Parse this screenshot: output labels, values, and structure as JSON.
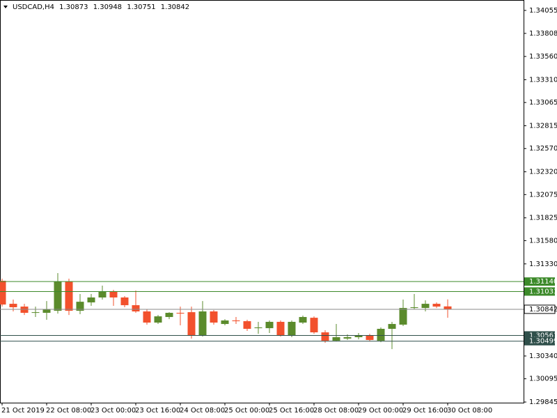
{
  "chart_data": {
    "type": "candlestick",
    "symbol": "USDCAD,H4",
    "categories": [
      "21 Oct 2019",
      null,
      null,
      null,
      "22 Oct 08:00",
      null,
      null,
      null,
      "23 Oct 00:00",
      null,
      null,
      null,
      "23 Oct 16:00",
      null,
      null,
      null,
      "24 Oct 08:00",
      null,
      null,
      null,
      "25 Oct 00:00",
      null,
      null,
      null,
      "25 Oct 16:00",
      null,
      null,
      null,
      "28 Oct 08:00",
      null,
      null,
      null,
      "29 Oct 00:00",
      null,
      null,
      null,
      "29 Oct 16:00",
      null,
      null,
      null,
      "30 Oct 08:00"
    ],
    "series": [
      {
        "name": "USDCAD,H4",
        "up_color": "#5b8b2c",
        "down_color": "#f2512d",
        "open": [
          1.31148,
          1.30901,
          1.30871,
          1.30804,
          1.30804,
          1.30826,
          1.31141,
          1.30826,
          1.30916,
          1.30969,
          1.31036,
          1.30969,
          1.30886,
          1.30819,
          1.30699,
          1.30759,
          1.30804,
          1.30811,
          1.30564,
          1.30819,
          1.30684,
          1.30722,
          1.30714,
          1.30639,
          1.30639,
          1.30707,
          1.30564,
          1.30699,
          1.30751,
          1.30594,
          1.30504,
          1.30527,
          1.30542,
          1.30557,
          1.30504,
          1.30632,
          1.30677,
          1.30856,
          1.30856,
          1.30901,
          1.30873
        ],
        "high": [
          1.31171,
          1.30946,
          1.30901,
          1.30871,
          1.30931,
          1.31231,
          1.31171,
          1.31006,
          1.31006,
          1.31096,
          1.31051,
          1.30984,
          1.31044,
          1.30841,
          1.30781,
          1.30811,
          1.30871,
          1.30871,
          1.30931,
          1.30834,
          1.30736,
          1.30759,
          1.30729,
          1.30707,
          1.30722,
          1.30722,
          1.30722,
          1.30774,
          1.30766,
          1.30617,
          1.30684,
          1.30572,
          1.30587,
          1.30579,
          1.30647,
          1.30707,
          1.30946,
          1.31006,
          1.30938,
          1.30916,
          1.30948
        ],
        "low": [
          1.30871,
          1.30819,
          1.30781,
          1.30759,
          1.30729,
          1.30796,
          1.30781,
          1.30789,
          1.30879,
          1.30946,
          1.30879,
          1.30864,
          1.30804,
          1.30677,
          1.30684,
          1.30736,
          1.30669,
          1.30527,
          1.30549,
          1.30677,
          1.30669,
          1.30684,
          1.30609,
          1.30579,
          1.30587,
          1.30549,
          1.30542,
          1.30684,
          1.30579,
          1.30482,
          1.30497,
          1.30512,
          1.30519,
          1.30497,
          1.30489,
          1.30414,
          1.30662,
          1.30841,
          1.30819,
          1.30856,
          1.30751
        ],
        "close": [
          1.30893,
          1.30864,
          1.30804,
          1.30811,
          1.30841,
          1.31141,
          1.30826,
          1.30923,
          1.30969,
          1.31036,
          1.30969,
          1.30886,
          1.30819,
          1.30699,
          1.30766,
          1.30804,
          1.30796,
          1.30564,
          1.30819,
          1.30699,
          1.30722,
          1.30714,
          1.30632,
          1.30647,
          1.30707,
          1.30564,
          1.30707,
          1.30759,
          1.30594,
          1.30504,
          1.30542,
          1.30542,
          1.30564,
          1.30512,
          1.30632,
          1.30684,
          1.30856,
          1.30864,
          1.30901,
          1.30871,
          1.30842
        ]
      }
    ],
    "levels": [
      {
        "value": 1.3114,
        "label": "1.31140",
        "color": "#3c8a2a"
      },
      {
        "value": 1.31033,
        "label": "1.31033",
        "color": "#3c8a2a"
      },
      {
        "value": 1.30561,
        "label": "1.30561",
        "color": "#2f4f4a"
      },
      {
        "value": 1.30499,
        "label": "1.30499",
        "color": "#2f4f4a"
      }
    ],
    "ylim": [
      1.29838,
      1.34167
    ],
    "yticks": [
      1.34055,
      1.33808,
      {
        "value": 1.3356,
        "label": "1.33560"
      },
      {
        "value": 1.3331,
        "label": "1.33310"
      },
      1.33065,
      1.32815,
      {
        "value": 1.3257,
        "label": "1.32570"
      },
      {
        "value": 1.3232,
        "label": "1.32320"
      },
      1.32075,
      1.31825,
      {
        "value": 1.3158,
        "label": "1.31580"
      },
      {
        "value": 1.3133,
        "label": "1.31330"
      },
      {
        "value": 1.3034,
        "label": "1.30340"
      },
      1.30095,
      1.29845
    ]
  }
}
